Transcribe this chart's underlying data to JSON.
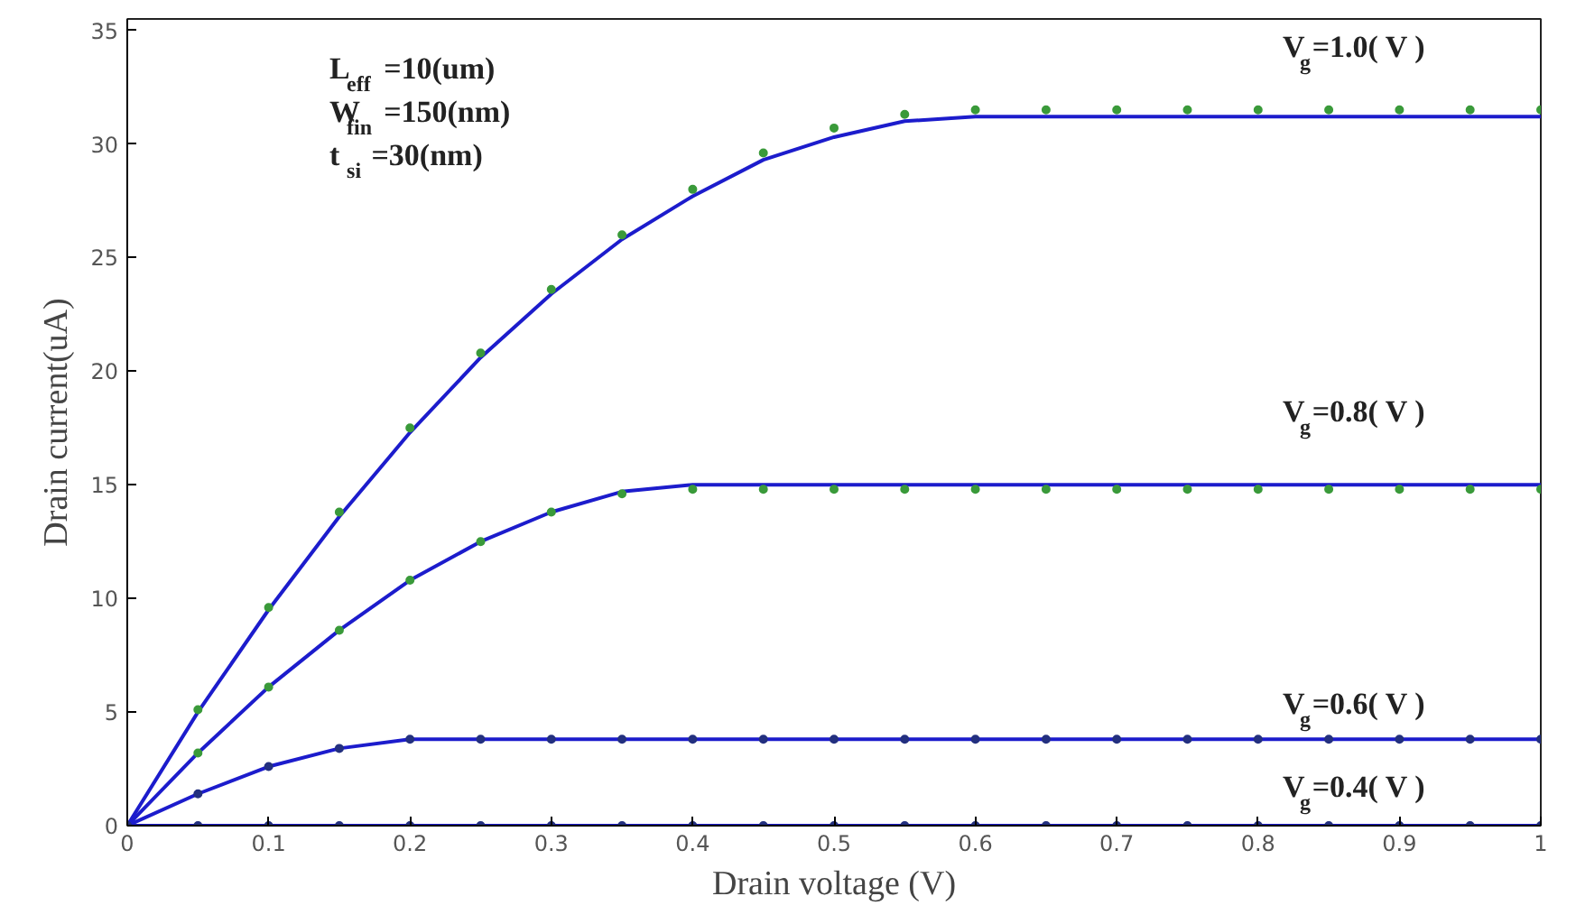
{
  "chart_data": {
    "type": "line",
    "xlabel": "Drain voltage (V)",
    "ylabel": "Drain current(uA)",
    "xlim": [
      0,
      1
    ],
    "ylim": [
      0,
      35.5
    ],
    "xticks": [
      0,
      0.1,
      0.2,
      0.3,
      0.4,
      0.5,
      0.6,
      0.7,
      0.8,
      0.9,
      1
    ],
    "yticks": [
      0,
      5,
      10,
      15,
      20,
      25,
      30,
      35
    ],
    "grid": false,
    "series": [
      {
        "color": "#1c1ccc",
        "x": [
          0,
          0.05,
          0.1,
          0.15,
          0.2,
          0.25,
          0.3,
          0.35,
          0.4,
          0.45,
          0.5,
          0.55,
          0.6,
          1.0
        ],
        "values": [
          0,
          5.0,
          9.5,
          13.6,
          17.3,
          20.6,
          23.4,
          25.8,
          27.7,
          29.3,
          30.3,
          31.0,
          31.2,
          31.2
        ]
      },
      {
        "type": "scatter",
        "color": "#3a9a3a",
        "x": [
          0.05,
          0.1,
          0.15,
          0.2,
          0.25,
          0.3,
          0.35,
          0.4,
          0.45,
          0.5,
          0.55,
          0.6,
          0.65,
          0.7,
          0.75,
          0.8,
          0.85,
          0.9,
          0.95,
          1.0
        ],
        "values": [
          5.1,
          9.6,
          13.8,
          17.5,
          20.8,
          23.6,
          26.0,
          28.0,
          29.6,
          30.7,
          31.3,
          31.5,
          31.5,
          31.5,
          31.5,
          31.5,
          31.5,
          31.5,
          31.5,
          31.5
        ]
      },
      {
        "color": "#1c1ccc",
        "x": [
          0,
          0.05,
          0.1,
          0.15,
          0.2,
          0.25,
          0.3,
          0.35,
          0.4,
          1.0
        ],
        "values": [
          0,
          3.2,
          6.1,
          8.6,
          10.8,
          12.5,
          13.8,
          14.7,
          15.0,
          15.0
        ]
      },
      {
        "type": "scatter",
        "color": "#3a9a3a",
        "x": [
          0.05,
          0.1,
          0.15,
          0.2,
          0.25,
          0.3,
          0.35,
          0.4,
          0.45,
          0.5,
          0.55,
          0.6,
          0.65,
          0.7,
          0.75,
          0.8,
          0.85,
          0.9,
          0.95,
          1.0
        ],
        "values": [
          3.2,
          6.1,
          8.6,
          10.8,
          12.5,
          13.8,
          14.6,
          14.8,
          14.8,
          14.8,
          14.8,
          14.8,
          14.8,
          14.8,
          14.8,
          14.8,
          14.8,
          14.8,
          14.8,
          14.8
        ]
      },
      {
        "color": "#1c1ccc",
        "x": [
          0,
          0.05,
          0.1,
          0.15,
          0.2,
          1.0
        ],
        "values": [
          0,
          1.4,
          2.6,
          3.4,
          3.8,
          3.8
        ]
      },
      {
        "type": "scatter",
        "color": "#23307f",
        "x": [
          0,
          0.05,
          0.1,
          0.15,
          0.2,
          0.25,
          0.3,
          0.35,
          0.4,
          0.45,
          0.5,
          0.55,
          0.6,
          0.65,
          0.7,
          0.75,
          0.8,
          0.85,
          0.9,
          0.95,
          1.0
        ],
        "values": [
          0,
          1.4,
          2.6,
          3.4,
          3.8,
          3.8,
          3.8,
          3.8,
          3.8,
          3.8,
          3.8,
          3.8,
          3.8,
          3.8,
          3.8,
          3.8,
          3.8,
          3.8,
          3.8,
          3.8,
          3.8
        ]
      },
      {
        "color": "#1c1ccc",
        "x": [
          0,
          1.0
        ],
        "values": [
          0,
          0
        ]
      },
      {
        "type": "scatter",
        "color": "#23307f",
        "x": [
          0,
          0.05,
          0.1,
          0.15,
          0.2,
          0.25,
          0.3,
          0.35,
          0.4,
          0.45,
          0.5,
          0.55,
          0.6,
          0.65,
          0.7,
          0.75,
          0.8,
          0.85,
          0.9,
          0.95,
          1.0
        ],
        "values": [
          0,
          0,
          0,
          0,
          0,
          0,
          0,
          0,
          0,
          0,
          0,
          0,
          0,
          0,
          0,
          0,
          0,
          0,
          0,
          0,
          0
        ]
      }
    ],
    "annotations": [
      "L$_{eff}$=10(um)",
      "W$_{fin}$=150(nm)",
      "t$_{si}$=30(nm)",
      "V$_{g}$=1.0( V )",
      "V$_{g}$=0.8( V )",
      "V$_{g}$=0.6( V )",
      "V$_{g}$=0.4( V )"
    ]
  }
}
